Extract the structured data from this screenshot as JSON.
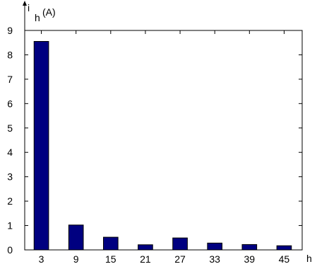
{
  "chart_data": {
    "type": "bar",
    "categories": [
      "3",
      "9",
      "15",
      "21",
      "27",
      "33",
      "39",
      "45"
    ],
    "values": [
      8.55,
      1.02,
      0.52,
      0.21,
      0.49,
      0.28,
      0.22,
      0.17
    ],
    "ylim": [
      0,
      9
    ],
    "yticks": [
      "0",
      "1",
      "2",
      "3",
      "4",
      "5",
      "6",
      "7",
      "8",
      "9"
    ],
    "ylabel_main": "i",
    "ylabel_sub": "h",
    "ylabel_unit": "(A)",
    "xlabel": "h",
    "bar_color": "#000080",
    "grid": false,
    "legend": "none"
  }
}
